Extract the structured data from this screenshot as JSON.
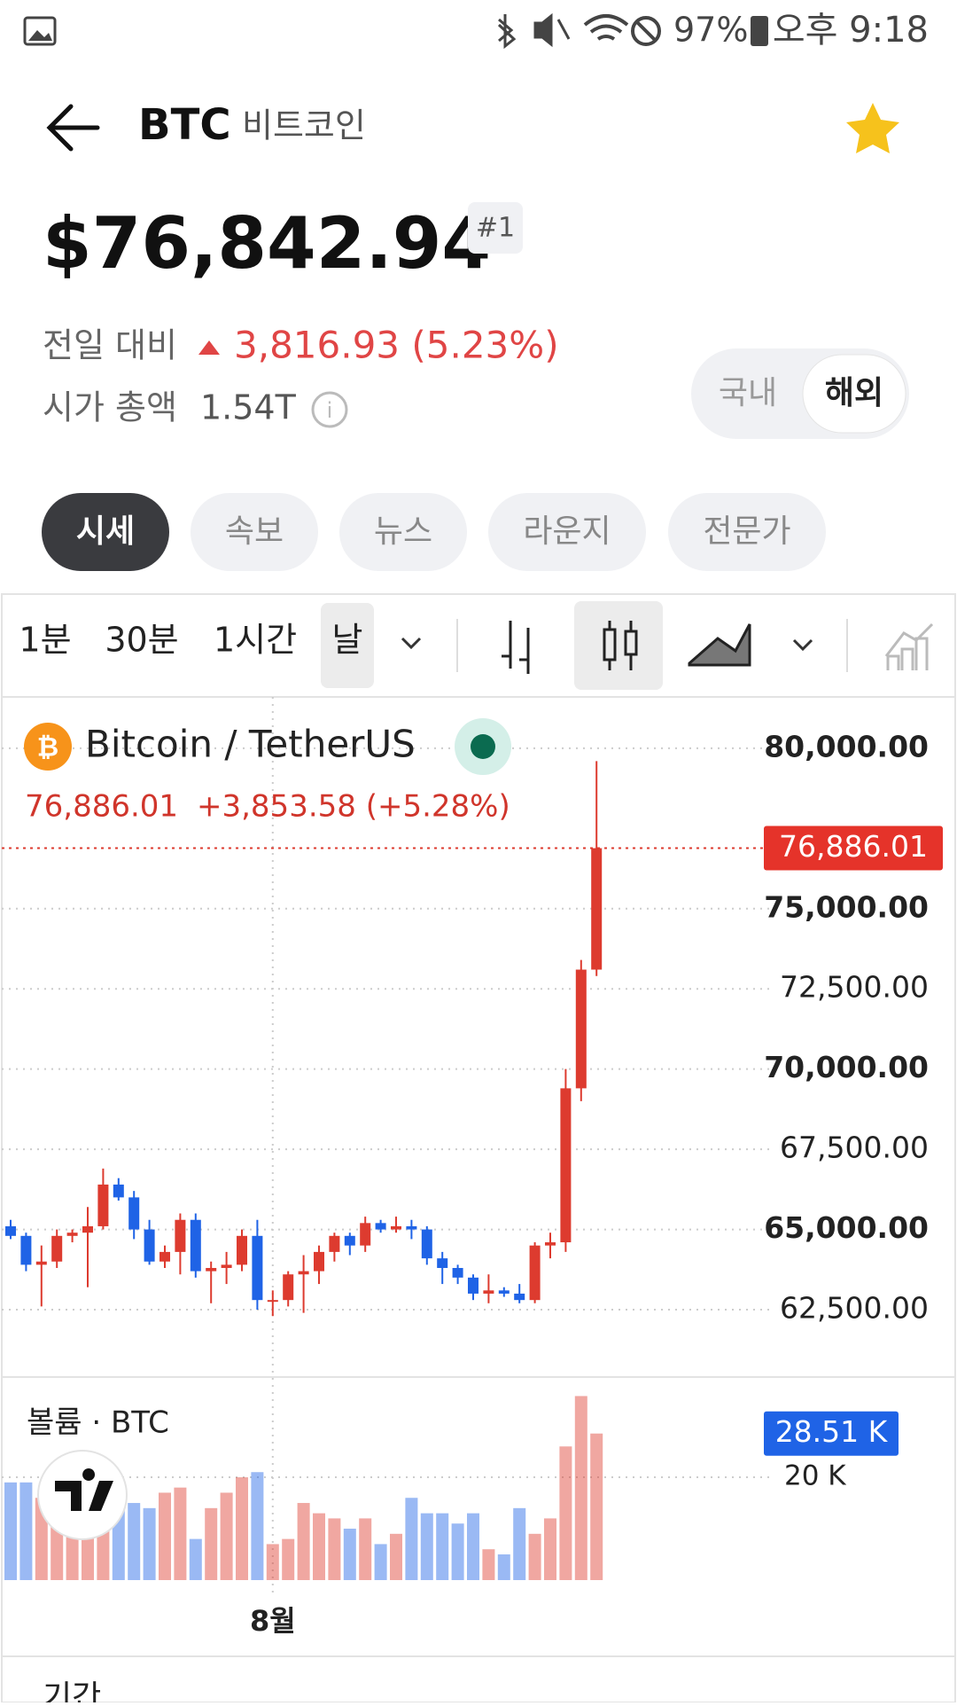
{
  "status_bar": {
    "battery": "97%",
    "time": "오후 9:18"
  },
  "header": {
    "symbol": "BTC",
    "name": "비트코인"
  },
  "price": {
    "value": "$76,842.94",
    "rank": "#1"
  },
  "change": {
    "label": "전일 대비",
    "value": "3,816.93 (5.23%)"
  },
  "market_cap": {
    "label": "시가 총액",
    "value": "1.54T"
  },
  "market_toggle": [
    "국내",
    "해외"
  ],
  "tabs": [
    "시세",
    "속보",
    "뉴스",
    "라운지",
    "전문가"
  ],
  "intervals": [
    "1분",
    "30분",
    "1시간",
    "날"
  ],
  "chart_data": {
    "type": "candlestick",
    "title": "Bitcoin / TetherUS",
    "legend_values": [
      "76,886.01",
      "+3,853.58 (+5.28%)"
    ],
    "up_color": "#dd3b2f",
    "down_color": "#1f63e6",
    "categories": [
      null,
      null,
      null,
      null,
      null,
      null,
      null,
      null,
      null,
      null,
      null,
      null,
      null,
      null,
      null,
      null,
      null,
      "8월",
      null,
      null,
      null,
      null,
      null,
      null,
      null,
      null,
      null,
      null,
      null,
      null,
      null,
      null,
      null,
      null,
      null,
      null,
      null,
      null,
      null
    ],
    "open": [
      65100,
      64800,
      63900,
      64000,
      64800,
      64900,
      65100,
      66400,
      66000,
      65000,
      64000,
      64300,
      65300,
      63700,
      63800,
      63900,
      64800,
      62800,
      62800,
      63600,
      63700,
      64300,
      64800,
      64500,
      65200,
      65000,
      65100,
      65000,
      64100,
      63800,
      63500,
      63000,
      63100,
      63000,
      62800,
      64500,
      64600,
      69400,
      73100
    ],
    "high": [
      65300,
      64900,
      64500,
      65000,
      65000,
      65700,
      66900,
      66600,
      66200,
      65300,
      64500,
      65500,
      65500,
      64000,
      64300,
      65000,
      65300,
      63100,
      63700,
      64200,
      64500,
      64900,
      64900,
      65400,
      65300,
      65400,
      65300,
      65100,
      64300,
      63900,
      63600,
      63600,
      63200,
      63300,
      64600,
      64900,
      70000,
      73400,
      79600
    ],
    "low": [
      64700,
      63700,
      62600,
      63800,
      64600,
      63200,
      65000,
      65900,
      64700,
      63900,
      63800,
      63600,
      63500,
      62700,
      63300,
      63700,
      62500,
      62300,
      62600,
      62400,
      63300,
      64000,
      64200,
      64300,
      64900,
      64900,
      64700,
      63900,
      63300,
      63300,
      62800,
      62700,
      62900,
      62700,
      62700,
      64100,
      64300,
      69000,
      72900
    ],
    "close": [
      64800,
      63900,
      64000,
      64800,
      64900,
      65100,
      66400,
      66000,
      65000,
      64000,
      64300,
      65300,
      63700,
      63800,
      63900,
      64800,
      62800,
      62800,
      63600,
      63700,
      64300,
      64800,
      64500,
      65200,
      65000,
      65100,
      65000,
      64100,
      63800,
      63500,
      63000,
      63100,
      63000,
      62800,
      64500,
      64600,
      69400,
      73100,
      76886.01
    ],
    "ylim": [
      60400,
      81600
    ],
    "yticks": [
      {
        "value": 62500,
        "label": "62,500.00"
      },
      {
        "value": 65000,
        "label": "65,000.00"
      },
      {
        "value": 67500,
        "label": "67,500.00"
      },
      {
        "value": 70000,
        "label": "70,000.00"
      },
      {
        "value": 72500,
        "label": "72,500.00"
      },
      {
        "value": 75000,
        "label": "75,000.00"
      },
      {
        "value": 80000,
        "label": "80,000.00"
      }
    ],
    "last_price": {
      "value": 76886.01,
      "label": "76,886.01"
    },
    "volume": {
      "title": "볼륨 · BTC",
      "values": [
        19000,
        19000,
        16000,
        15000,
        14000,
        12000,
        19000,
        16000,
        15000,
        14000,
        17000,
        18000,
        8000,
        14000,
        17000,
        20000,
        21000,
        7000,
        8000,
        15000,
        13000,
        12000,
        10000,
        12000,
        7000,
        9000,
        16000,
        13000,
        13000,
        11000,
        13000,
        6000,
        5000,
        14000,
        9000,
        12000,
        26000,
        35800,
        28510
      ],
      "ylim": [
        0,
        39500
      ],
      "yticks": [
        {
          "value": 20000,
          "label": "20 K"
        }
      ],
      "last": {
        "value": 28510,
        "label": "28.51 K"
      }
    }
  },
  "footer": {
    "label": "기간"
  }
}
